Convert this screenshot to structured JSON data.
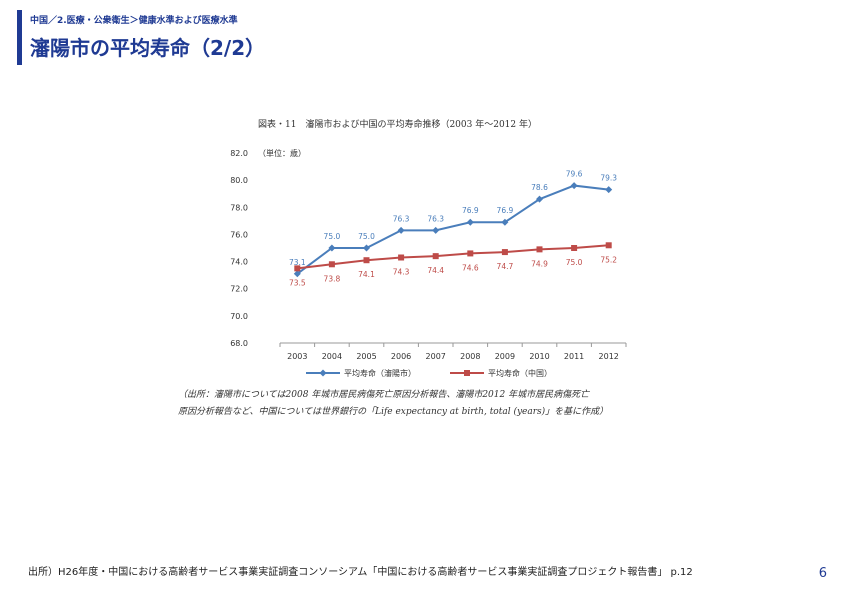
{
  "header": {
    "breadcrumb": "中国／2.医療・公衆衛生＞健康水準および医療水準",
    "title": "瀋陽市の平均寿命（2/2）"
  },
  "figure": {
    "caption": "図表・11　瀋陽市および中国の平均寿命推移（2003 年～2012 年）",
    "source_line1": "（出所：瀋陽市については2008 年城市居民病傷死亡原因分析報告、瀋陽市2012 年城市居民病傷死亡",
    "source_line2": "原因分析報告など、中国については世界銀行の「Life expectancy at birth, total (years)」を基に作成）"
  },
  "chart_data": {
    "type": "line",
    "unit_label": "（単位：歳）",
    "categories": [
      "2003",
      "2004",
      "2005",
      "2006",
      "2007",
      "2008",
      "2009",
      "2010",
      "2011",
      "2012"
    ],
    "ylim": [
      68.0,
      82.0
    ],
    "yticks": [
      "82.0",
      "80.0",
      "78.0",
      "76.0",
      "74.0",
      "72.0",
      "70.0",
      "68.0"
    ],
    "legend_position": "bottom",
    "grid": false,
    "series": [
      {
        "name": "平均寿命（瀋陽市）",
        "color": "#4a7ebb",
        "values": [
          73.1,
          75.0,
          75.0,
          76.3,
          76.3,
          76.9,
          76.9,
          78.6,
          79.6,
          79.3
        ],
        "labels": [
          "73.1",
          "75.0",
          "75.0",
          "76.3",
          "76.3",
          "76.9",
          "76.9",
          "78.6",
          "79.6",
          "79.3"
        ]
      },
      {
        "name": "平均寿命（中国）",
        "color": "#be4b48",
        "values": [
          73.5,
          73.8,
          74.1,
          74.3,
          74.4,
          74.6,
          74.7,
          74.9,
          75.0,
          75.2
        ],
        "labels": [
          "73.5",
          "73.8",
          "74.1",
          "74.3",
          "74.4",
          "74.6",
          "74.7",
          "74.9",
          "75.0",
          "75.2"
        ]
      }
    ]
  },
  "footer": {
    "source": "出所）H26年度・中国における高齢者サービス事業実証調査コンソーシアム「中国における高齢者サービス事業実証調査プロジェクト報告書」 p.12",
    "page_number": "6"
  }
}
